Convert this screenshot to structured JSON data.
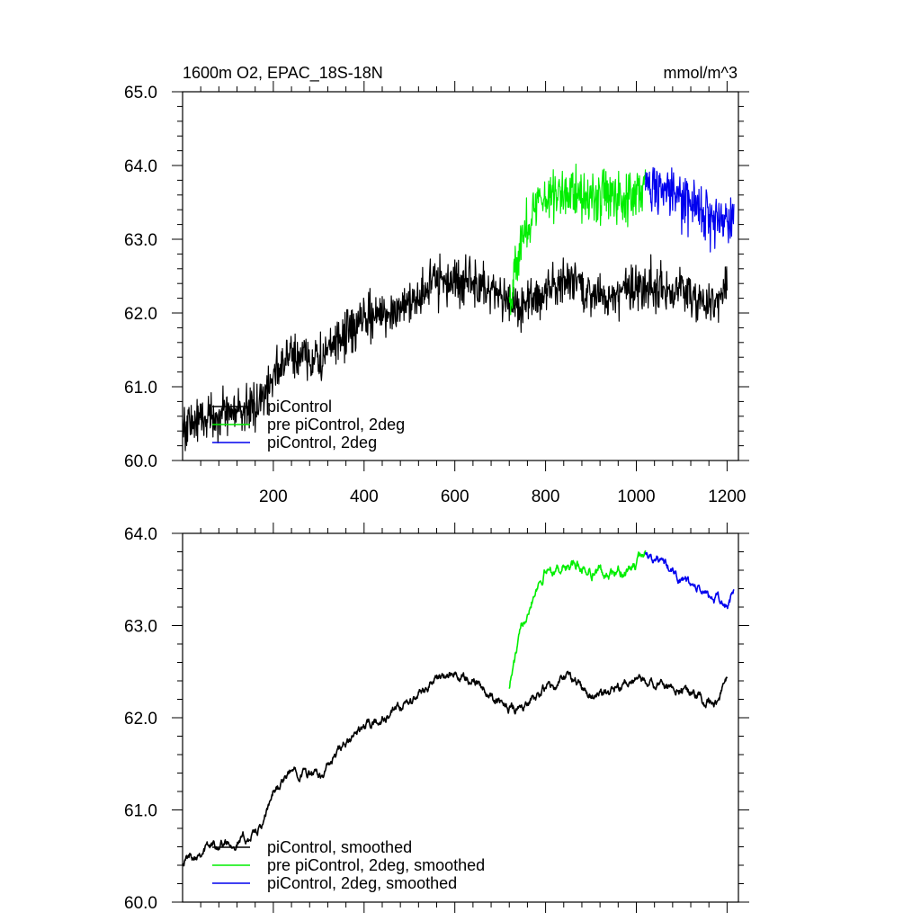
{
  "title_left": "1600m O2, EPAC_18S-18N",
  "title_right": "mmol/m^3",
  "chart_data": [
    {
      "type": "line",
      "xlim": [
        0,
        1225
      ],
      "ylim": [
        60.0,
        65.0
      ],
      "x_ticks": [
        200,
        400,
        600,
        800,
        1000,
        1200
      ],
      "y_ticks": [
        60.0,
        61.0,
        62.0,
        63.0,
        64.0,
        65.0
      ],
      "y_tick_labels": [
        "60.0",
        "61.0",
        "62.0",
        "63.0",
        "64.0",
        "65.0"
      ],
      "x_tick_labels": [
        "200",
        "400",
        "600",
        "800",
        "1000",
        "1200"
      ],
      "legend_position": "bottom-left",
      "series": [
        {
          "name": "piControl",
          "color": "#000000",
          "noise": 0.45,
          "x": [
            0,
            50,
            100,
            150,
            180,
            200,
            250,
            300,
            350,
            400,
            450,
            500,
            550,
            600,
            650,
            700,
            750,
            800,
            850,
            900,
            950,
            1000,
            1050,
            1100,
            1150,
            1180,
            1200
          ],
          "y": [
            60.45,
            60.6,
            60.65,
            60.7,
            60.85,
            61.2,
            61.45,
            61.35,
            61.65,
            61.9,
            62.0,
            62.15,
            62.4,
            62.45,
            62.4,
            62.15,
            62.1,
            62.3,
            62.45,
            62.25,
            62.25,
            62.4,
            62.35,
            62.35,
            62.15,
            62.2,
            62.4
          ]
        },
        {
          "name": "pre piControl, 2deg",
          "color": "#00ee00",
          "noise": 0.5,
          "x": [
            720,
            740,
            760,
            780,
            800,
            850,
            900,
            950,
            1000,
            1020
          ],
          "y": [
            62.2,
            62.8,
            63.2,
            63.45,
            63.6,
            63.65,
            63.6,
            63.55,
            63.65,
            63.7
          ]
        },
        {
          "name": "piControl, 2deg",
          "color": "#0000ee",
          "noise": 0.5,
          "x": [
            1020,
            1050,
            1100,
            1150,
            1200,
            1215
          ],
          "y": [
            63.75,
            63.7,
            63.5,
            63.35,
            63.25,
            63.35
          ]
        }
      ]
    },
    {
      "type": "line",
      "xlim": [
        0,
        1225
      ],
      "ylim": [
        60.0,
        64.0
      ],
      "x_ticks": [
        200,
        400,
        600,
        800,
        1000,
        1200
      ],
      "y_ticks": [
        60.0,
        61.0,
        62.0,
        63.0,
        64.0
      ],
      "y_tick_labels": [
        "60.0",
        "61.0",
        "62.0",
        "63.0",
        "64.0"
      ],
      "legend_position": "bottom-left",
      "series": [
        {
          "name": "piControl, smoothed",
          "color": "#000000",
          "noise": 0.12,
          "x": [
            0,
            50,
            100,
            150,
            180,
            200,
            250,
            300,
            350,
            400,
            450,
            500,
            550,
            600,
            650,
            700,
            750,
            800,
            850,
            900,
            950,
            1000,
            1050,
            1100,
            1150,
            1180,
            1200
          ],
          "y": [
            60.45,
            60.6,
            60.65,
            60.7,
            60.85,
            61.2,
            61.45,
            61.35,
            61.65,
            61.9,
            62.0,
            62.15,
            62.4,
            62.45,
            62.4,
            62.15,
            62.1,
            62.3,
            62.45,
            62.25,
            62.25,
            62.4,
            62.35,
            62.35,
            62.15,
            62.2,
            62.4
          ]
        },
        {
          "name": "pre piControl, 2deg, smoothed",
          "color": "#00ee00",
          "noise": 0.14,
          "x": [
            720,
            740,
            760,
            780,
            800,
            850,
            900,
            950,
            1000,
            1020
          ],
          "y": [
            62.35,
            62.8,
            63.2,
            63.45,
            63.6,
            63.65,
            63.6,
            63.55,
            63.65,
            63.8
          ]
        },
        {
          "name": "piControl, 2deg, smoothed",
          "color": "#0000ee",
          "noise": 0.12,
          "x": [
            1020,
            1050,
            1100,
            1150,
            1200,
            1215
          ],
          "y": [
            63.8,
            63.7,
            63.5,
            63.35,
            63.2,
            63.35
          ]
        }
      ]
    }
  ]
}
